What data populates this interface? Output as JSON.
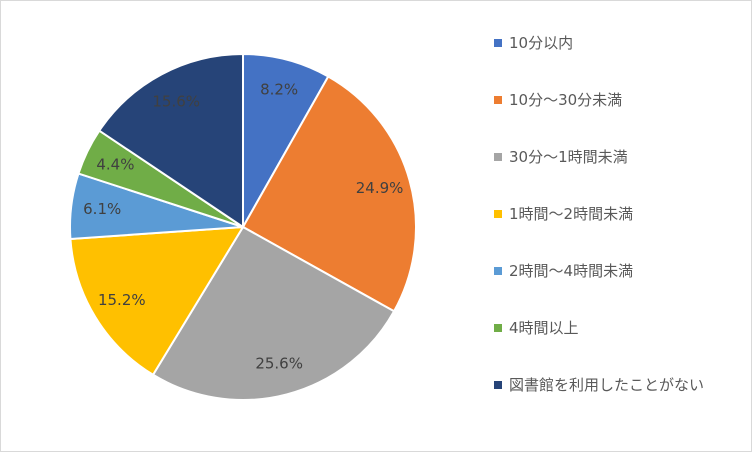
{
  "chart_data": {
    "type": "pie",
    "categories": [
      "10分以内",
      "10分～30分未満",
      "30分～1時間未満",
      "1時間～2時間未満",
      "2時間～4時間未満",
      "4時間以上",
      "図書館を利用したことがない"
    ],
    "values": [
      8.2,
      24.9,
      25.6,
      15.2,
      6.1,
      4.4,
      15.6
    ],
    "value_labels": [
      "8.2%",
      "24.9%",
      "25.6%",
      "15.2%",
      "6.1%",
      "4.4%",
      "15.6%"
    ],
    "colors": [
      "#4472c4",
      "#ed7d31",
      "#a5a5a5",
      "#ffc000",
      "#5b9bd5",
      "#70ad47",
      "#264478"
    ],
    "legend": "right"
  }
}
